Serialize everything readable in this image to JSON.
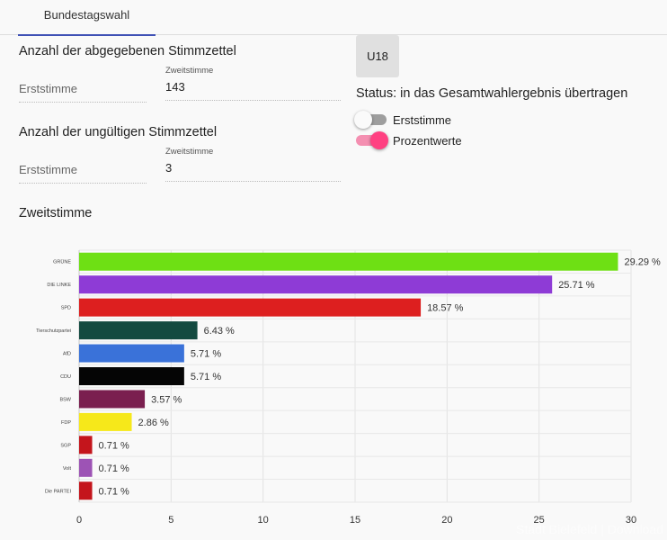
{
  "tabs": [
    {
      "label": "Bundestagswahl"
    }
  ],
  "stimmzettel": {
    "title": "Anzahl der abgegebenen Stimmzettel",
    "erst_label": "Erststimme",
    "zweit_label": "Zweitstimme",
    "zweit_value": "143"
  },
  "ungueltig": {
    "title": "Anzahl der ungültigen Stimmzettel",
    "erst_label": "Erststimme",
    "zweit_label": "Zweitstimme",
    "zweit_value": "3"
  },
  "u18_button": "U18",
  "status": "Status: in das Gesamtwahlergebnis übertragen",
  "toggles": [
    {
      "label": "Erststimme",
      "on": false
    },
    {
      "label": "Prozentwerte",
      "on": true
    }
  ],
  "chart_heading": "Zweitstimme",
  "chart_data": {
    "type": "bar",
    "orientation": "horizontal",
    "categories": [
      "GRÜNE",
      "DIE LINKE",
      "SPD",
      "Tierschutzpartei",
      "AfD",
      "CDU",
      "BSW",
      "FDP",
      "SGP",
      "Volt",
      "Die PARTEI"
    ],
    "values": [
      29.29,
      25.71,
      18.57,
      6.43,
      5.71,
      5.71,
      3.57,
      2.86,
      0.71,
      0.71,
      0.71
    ],
    "value_labels": [
      "29.29 %",
      "25.71 %",
      "18.57 %",
      "6.43 %",
      "5.71 %",
      "5.71 %",
      "3.57 %",
      "2.86 %",
      "0.71 %",
      "0.71 %",
      "0.71 %"
    ],
    "colors": [
      "#6ee014",
      "#8e3bd6",
      "#dd1f1f",
      "#134a40",
      "#3a72d9",
      "#050505",
      "#7a1f4f",
      "#f6e81a",
      "#c4151c",
      "#9d53b5",
      "#c4151c"
    ],
    "xlim": [
      0,
      30
    ],
    "xticks": [
      "0",
      "5",
      "10",
      "15",
      "20",
      "25",
      "30"
    ],
    "grid": true
  },
  "watermark": "Stadt Bielefeld | Download"
}
